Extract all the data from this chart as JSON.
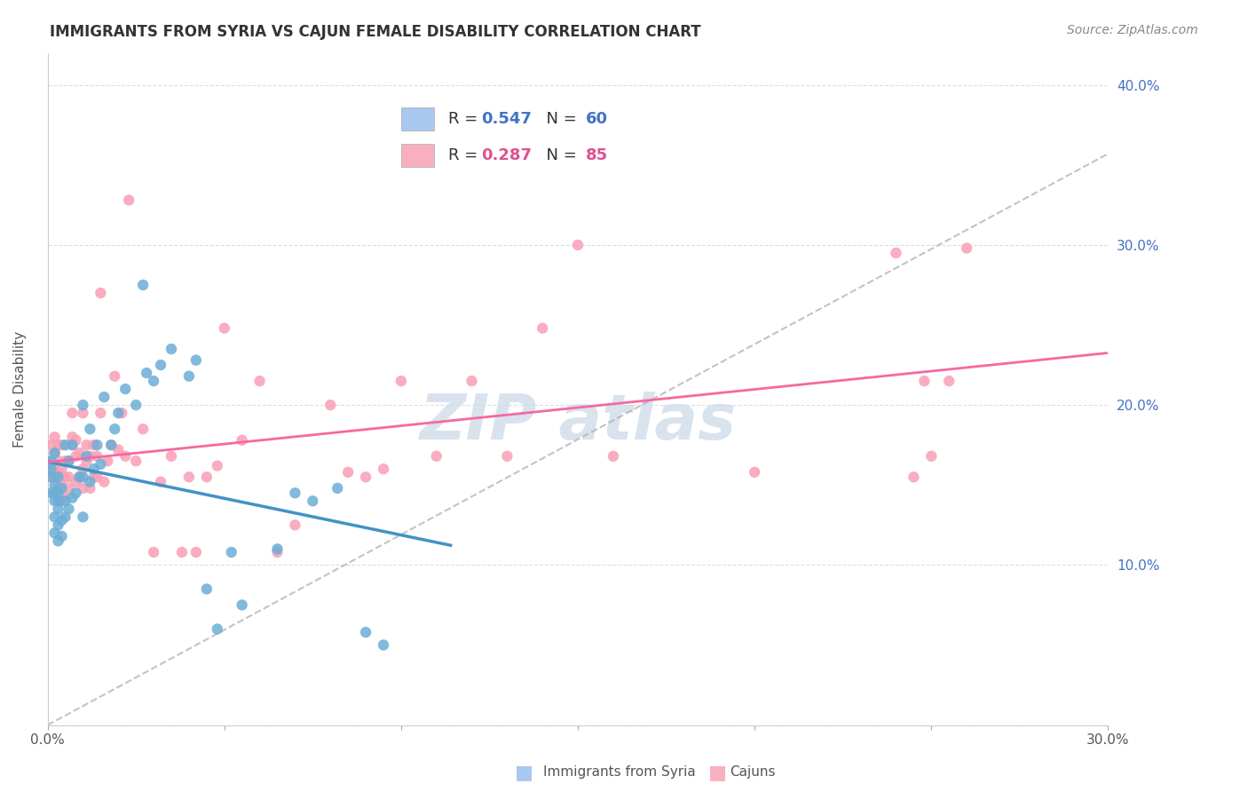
{
  "title": "IMMIGRANTS FROM SYRIA VS CAJUN FEMALE DISABILITY CORRELATION CHART",
  "source": "Source: ZipAtlas.com",
  "ylabel": "Female Disability",
  "xlabel": "",
  "xlim": [
    0.0,
    0.3
  ],
  "ylim": [
    0.0,
    0.42
  ],
  "x_ticks": [
    0.0,
    0.05,
    0.1,
    0.15,
    0.2,
    0.25,
    0.3
  ],
  "x_tick_labels": [
    "0.0%",
    "",
    "",
    "",
    "",
    "",
    "30.0%"
  ],
  "y_ticks": [
    0.0,
    0.1,
    0.2,
    0.3,
    0.4
  ],
  "y_tick_labels": [
    "",
    "10.0%",
    "20.0%",
    "30.0%",
    "40.0%"
  ],
  "syria_R": 0.547,
  "syria_N": 60,
  "cajun_R": 0.287,
  "cajun_N": 85,
  "syria_color": "#6baed6",
  "cajun_color": "#fa9fb5",
  "syria_trend_color": "#4292c6",
  "cajun_trend_color": "#f768a1",
  "dashed_line_color": "#aaaaaa",
  "background_color": "#ffffff",
  "grid_color": "#dddddd",
  "watermark_text": "ZIP atlas",
  "watermark_color": "#c8d8e8",
  "legend_box_color_syria": "#a8c8f0",
  "legend_box_color_cajun": "#f8b0c0",
  "syria_points_x": [
    0.001,
    0.001,
    0.001,
    0.001,
    0.002,
    0.002,
    0.002,
    0.002,
    0.002,
    0.002,
    0.003,
    0.003,
    0.003,
    0.003,
    0.003,
    0.003,
    0.004,
    0.004,
    0.004,
    0.005,
    0.005,
    0.005,
    0.006,
    0.006,
    0.007,
    0.007,
    0.008,
    0.009,
    0.01,
    0.01,
    0.01,
    0.011,
    0.012,
    0.012,
    0.013,
    0.014,
    0.015,
    0.016,
    0.018,
    0.019,
    0.02,
    0.022,
    0.025,
    0.027,
    0.028,
    0.03,
    0.032,
    0.035,
    0.04,
    0.042,
    0.045,
    0.048,
    0.052,
    0.055,
    0.065,
    0.07,
    0.075,
    0.082,
    0.09,
    0.095
  ],
  "syria_points_y": [
    0.145,
    0.155,
    0.16,
    0.165,
    0.12,
    0.13,
    0.14,
    0.145,
    0.15,
    0.17,
    0.115,
    0.125,
    0.135,
    0.14,
    0.145,
    0.155,
    0.118,
    0.128,
    0.148,
    0.13,
    0.14,
    0.175,
    0.135,
    0.165,
    0.142,
    0.175,
    0.145,
    0.155,
    0.13,
    0.155,
    0.2,
    0.168,
    0.152,
    0.185,
    0.16,
    0.175,
    0.163,
    0.205,
    0.175,
    0.185,
    0.195,
    0.21,
    0.2,
    0.275,
    0.22,
    0.215,
    0.225,
    0.235,
    0.218,
    0.228,
    0.085,
    0.06,
    0.108,
    0.075,
    0.11,
    0.145,
    0.14,
    0.148,
    0.058,
    0.05
  ],
  "cajun_points_x": [
    0.001,
    0.001,
    0.001,
    0.001,
    0.002,
    0.002,
    0.002,
    0.002,
    0.002,
    0.003,
    0.003,
    0.003,
    0.003,
    0.004,
    0.004,
    0.004,
    0.004,
    0.005,
    0.005,
    0.005,
    0.006,
    0.006,
    0.006,
    0.007,
    0.007,
    0.007,
    0.008,
    0.008,
    0.008,
    0.009,
    0.009,
    0.01,
    0.01,
    0.01,
    0.011,
    0.011,
    0.012,
    0.012,
    0.013,
    0.013,
    0.014,
    0.014,
    0.015,
    0.015,
    0.016,
    0.017,
    0.018,
    0.019,
    0.02,
    0.021,
    0.022,
    0.023,
    0.025,
    0.027,
    0.03,
    0.032,
    0.035,
    0.038,
    0.04,
    0.042,
    0.045,
    0.048,
    0.05,
    0.055,
    0.06,
    0.065,
    0.07,
    0.08,
    0.085,
    0.09,
    0.095,
    0.1,
    0.11,
    0.12,
    0.13,
    0.14,
    0.15,
    0.16,
    0.2,
    0.24,
    0.245,
    0.248,
    0.25,
    0.255,
    0.26
  ],
  "cajun_points_y": [
    0.155,
    0.16,
    0.165,
    0.175,
    0.145,
    0.155,
    0.16,
    0.17,
    0.18,
    0.148,
    0.158,
    0.165,
    0.175,
    0.14,
    0.15,
    0.16,
    0.175,
    0.142,
    0.155,
    0.165,
    0.148,
    0.155,
    0.165,
    0.175,
    0.18,
    0.195,
    0.152,
    0.168,
    0.178,
    0.155,
    0.17,
    0.148,
    0.16,
    0.195,
    0.165,
    0.175,
    0.148,
    0.168,
    0.155,
    0.175,
    0.155,
    0.168,
    0.195,
    0.27,
    0.152,
    0.165,
    0.175,
    0.218,
    0.172,
    0.195,
    0.168,
    0.328,
    0.165,
    0.185,
    0.108,
    0.152,
    0.168,
    0.108,
    0.155,
    0.108,
    0.155,
    0.162,
    0.248,
    0.178,
    0.215,
    0.108,
    0.125,
    0.2,
    0.158,
    0.155,
    0.16,
    0.215,
    0.168,
    0.215,
    0.168,
    0.248,
    0.3,
    0.168,
    0.158,
    0.295,
    0.155,
    0.215,
    0.168,
    0.215,
    0.298
  ]
}
